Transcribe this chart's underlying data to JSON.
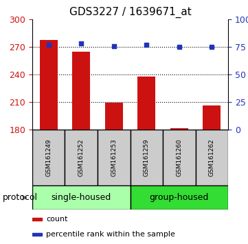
{
  "title": "GDS3227 / 1639671_at",
  "samples": [
    "GSM161249",
    "GSM161252",
    "GSM161253",
    "GSM161259",
    "GSM161260",
    "GSM161262"
  ],
  "counts": [
    278,
    265,
    209,
    238,
    181,
    206
  ],
  "percentile_ranks": [
    77,
    78,
    76,
    77,
    75,
    75
  ],
  "ylim_left": [
    180,
    300
  ],
  "ylim_right": [
    0,
    100
  ],
  "yticks_left": [
    180,
    210,
    240,
    270,
    300
  ],
  "yticks_right": [
    0,
    25,
    50,
    75,
    100
  ],
  "ytick_labels_right": [
    "0",
    "25",
    "50",
    "75",
    "100%"
  ],
  "bar_color": "#cc1111",
  "scatter_color": "#2233bb",
  "groups": [
    {
      "label": "single-housed",
      "indices": [
        0,
        1,
        2
      ],
      "color": "#aaffaa"
    },
    {
      "label": "group-housed",
      "indices": [
        3,
        4,
        5
      ],
      "color": "#33dd33"
    }
  ],
  "protocol_label": "protocol",
  "legend_items": [
    {
      "label": "count",
      "color": "#cc1111"
    },
    {
      "label": "percentile rank within the sample",
      "color": "#2233bb"
    }
  ],
  "bar_width": 0.55
}
